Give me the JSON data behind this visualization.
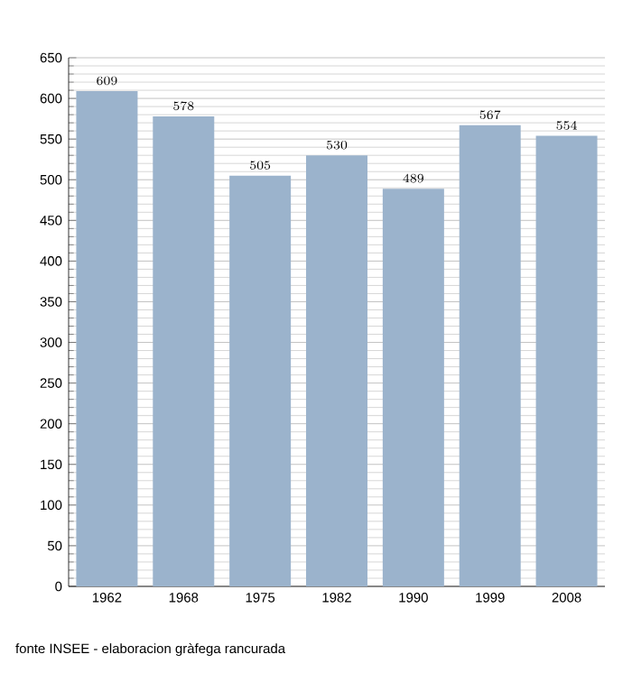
{
  "chart_data": {
    "type": "bar",
    "categories": [
      "1962",
      "1968",
      "1975",
      "1982",
      "1990",
      "1999",
      "2008"
    ],
    "values": [
      609,
      578,
      505,
      530,
      489,
      567,
      554
    ],
    "color": "#9bb3cc",
    "ylim": [
      0,
      650
    ],
    "yticks": [
      0,
      50,
      100,
      150,
      200,
      250,
      300,
      350,
      400,
      450,
      500,
      550,
      600,
      650
    ],
    "grid": "y",
    "data_labels": true,
    "annotations": [
      "fonte INSEE - elaboracion gràfega rancurada"
    ]
  }
}
